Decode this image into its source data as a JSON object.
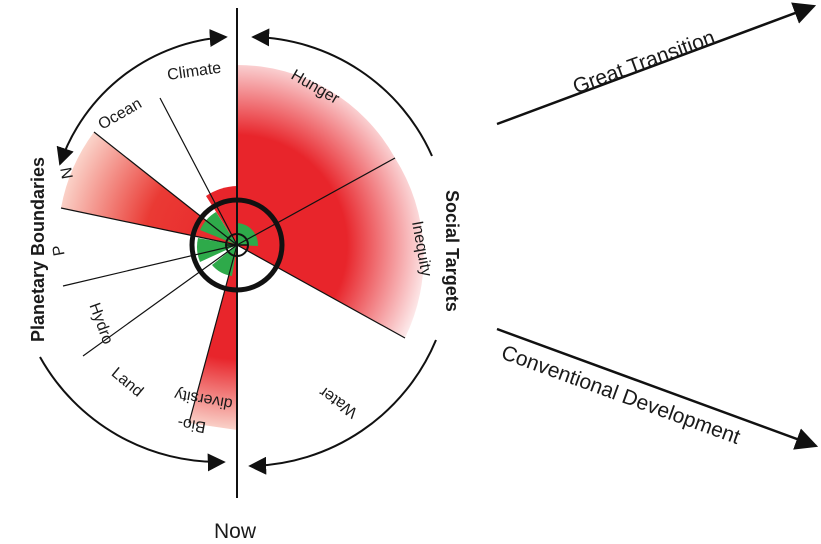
{
  "now_label": "Now",
  "planetary_boundaries_title": "Planetary Boundaries",
  "social_targets_title": "Social Targets",
  "scenarios": {
    "great_transition": "Great Transition",
    "conventional_development": "Conventional Development"
  },
  "wedges": {
    "climate": "Climate",
    "ocean": "Ocean",
    "n": "N",
    "p": "P",
    "hydro": "Hydro",
    "land": "Land",
    "biodiversity_line1": "Bio-",
    "biodiversity_line2": "diversity",
    "hunger": "Hunger",
    "inequity": "Inequity",
    "water": "Water"
  },
  "colors": {
    "overshoot_red": "#e8252b",
    "safe_green": "#2eaa4a",
    "line": "#111111"
  }
}
